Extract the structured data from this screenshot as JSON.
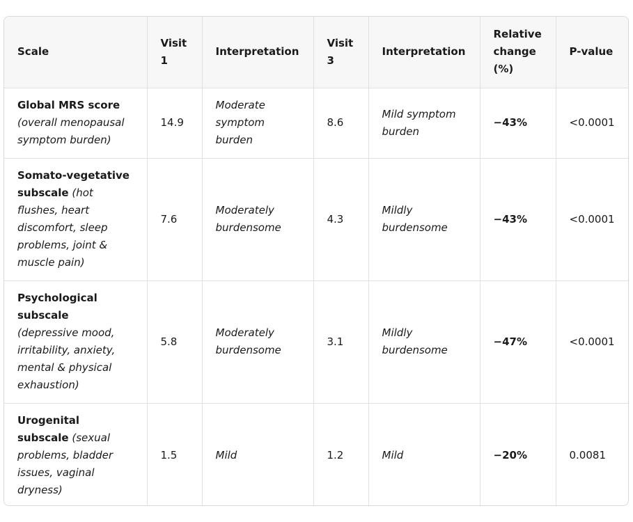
{
  "table": {
    "headers": [
      "Scale",
      "Visit 1",
      "Interpretation",
      "Visit 3",
      "Interpretation",
      "Relative change (%)",
      "P-value"
    ],
    "rows": [
      {
        "name": "Global MRS score",
        "description": "(overall menopausal symptom burden)",
        "visit1": "14.9",
        "interp1": "Moderate symptom burden",
        "visit3": "8.6",
        "interp3": "Mild symptom burden",
        "change": "−43%",
        "pvalue": "<0.0001"
      },
      {
        "name": "Somato-vegetative subscale",
        "description": "(hot flushes, heart discomfort, sleep problems, joint & muscle pain)",
        "visit1": "7.6",
        "interp1": "Moderately burdensome",
        "visit3": "4.3",
        "interp3": "Mildly burdensome",
        "change": "−43%",
        "pvalue": "<0.0001"
      },
      {
        "name": "Psychological subscale",
        "description": "(depressive mood, irritability, anxiety, mental & physical exhaustion)",
        "visit1": "5.8",
        "interp1": "Moderately burdensome",
        "visit3": "3.1",
        "interp3": "Mildly burdensome",
        "change": "−47%",
        "pvalue": "<0.0001"
      },
      {
        "name": "Urogenital subscale",
        "description": "(sexual problems, bladder issues, vaginal dryness)",
        "visit1": "1.5",
        "interp1": "Mild",
        "visit3": "1.2",
        "interp3": "Mild",
        "change": "−20%",
        "pvalue": "0.0081"
      }
    ]
  }
}
